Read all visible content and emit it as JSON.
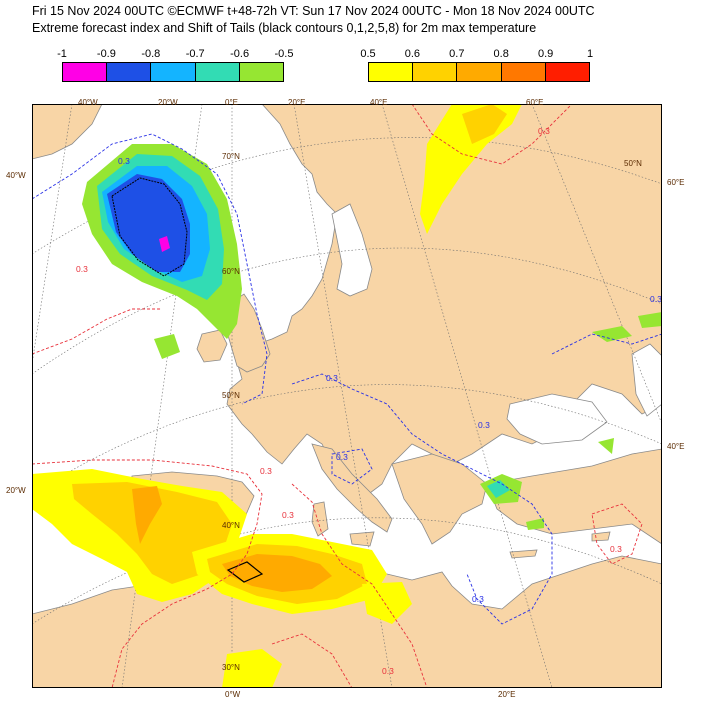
{
  "header": {
    "line1": "Fri 15 Nov 2024 00UTC ©ECMWF t+48-72h  VT: Sun 17 Nov 2024 00UTC - Mon 18 Nov 2024 00UTC",
    "line2": "Extreme forecast index and Shift of Tails (black contours 0,1,2,5,8) for 2m max temperature"
  },
  "legend_negative": {
    "ticks": [
      "-1",
      "-0.9",
      "-0.8",
      "-0.7",
      "-0.6",
      "-0.5"
    ],
    "colors": [
      "#ff00e6",
      "#1e50e6",
      "#14b4ff",
      "#32dcb4",
      "#96e632"
    ]
  },
  "legend_positive": {
    "ticks": [
      "0.5",
      "0.6",
      "0.7",
      "0.8",
      "0.9",
      "1"
    ],
    "colors": [
      "#ffff00",
      "#ffd200",
      "#ffaa00",
      "#ff7800",
      "#ff1e00"
    ]
  },
  "map": {
    "top_labels": [
      "40°W",
      "20°W",
      "0°E",
      "20°E",
      "40°E",
      "60°E"
    ],
    "left_labels": [
      "40°W",
      "20°W"
    ],
    "right_labels": [
      "60°E",
      "40°E"
    ],
    "bottom_labels": [
      "0°W",
      "20°E"
    ],
    "lat_labels": [
      "70°N",
      "60°N",
      "50°N",
      "40°N",
      "30°N",
      "50°N"
    ],
    "contour_label": "0.3",
    "colors": {
      "land": "#f8d5a6",
      "sea": "#ffffff",
      "positive_contour": "#e8323c",
      "negative_contour": "#2830e6",
      "coastline": "#8a8a8a"
    }
  }
}
